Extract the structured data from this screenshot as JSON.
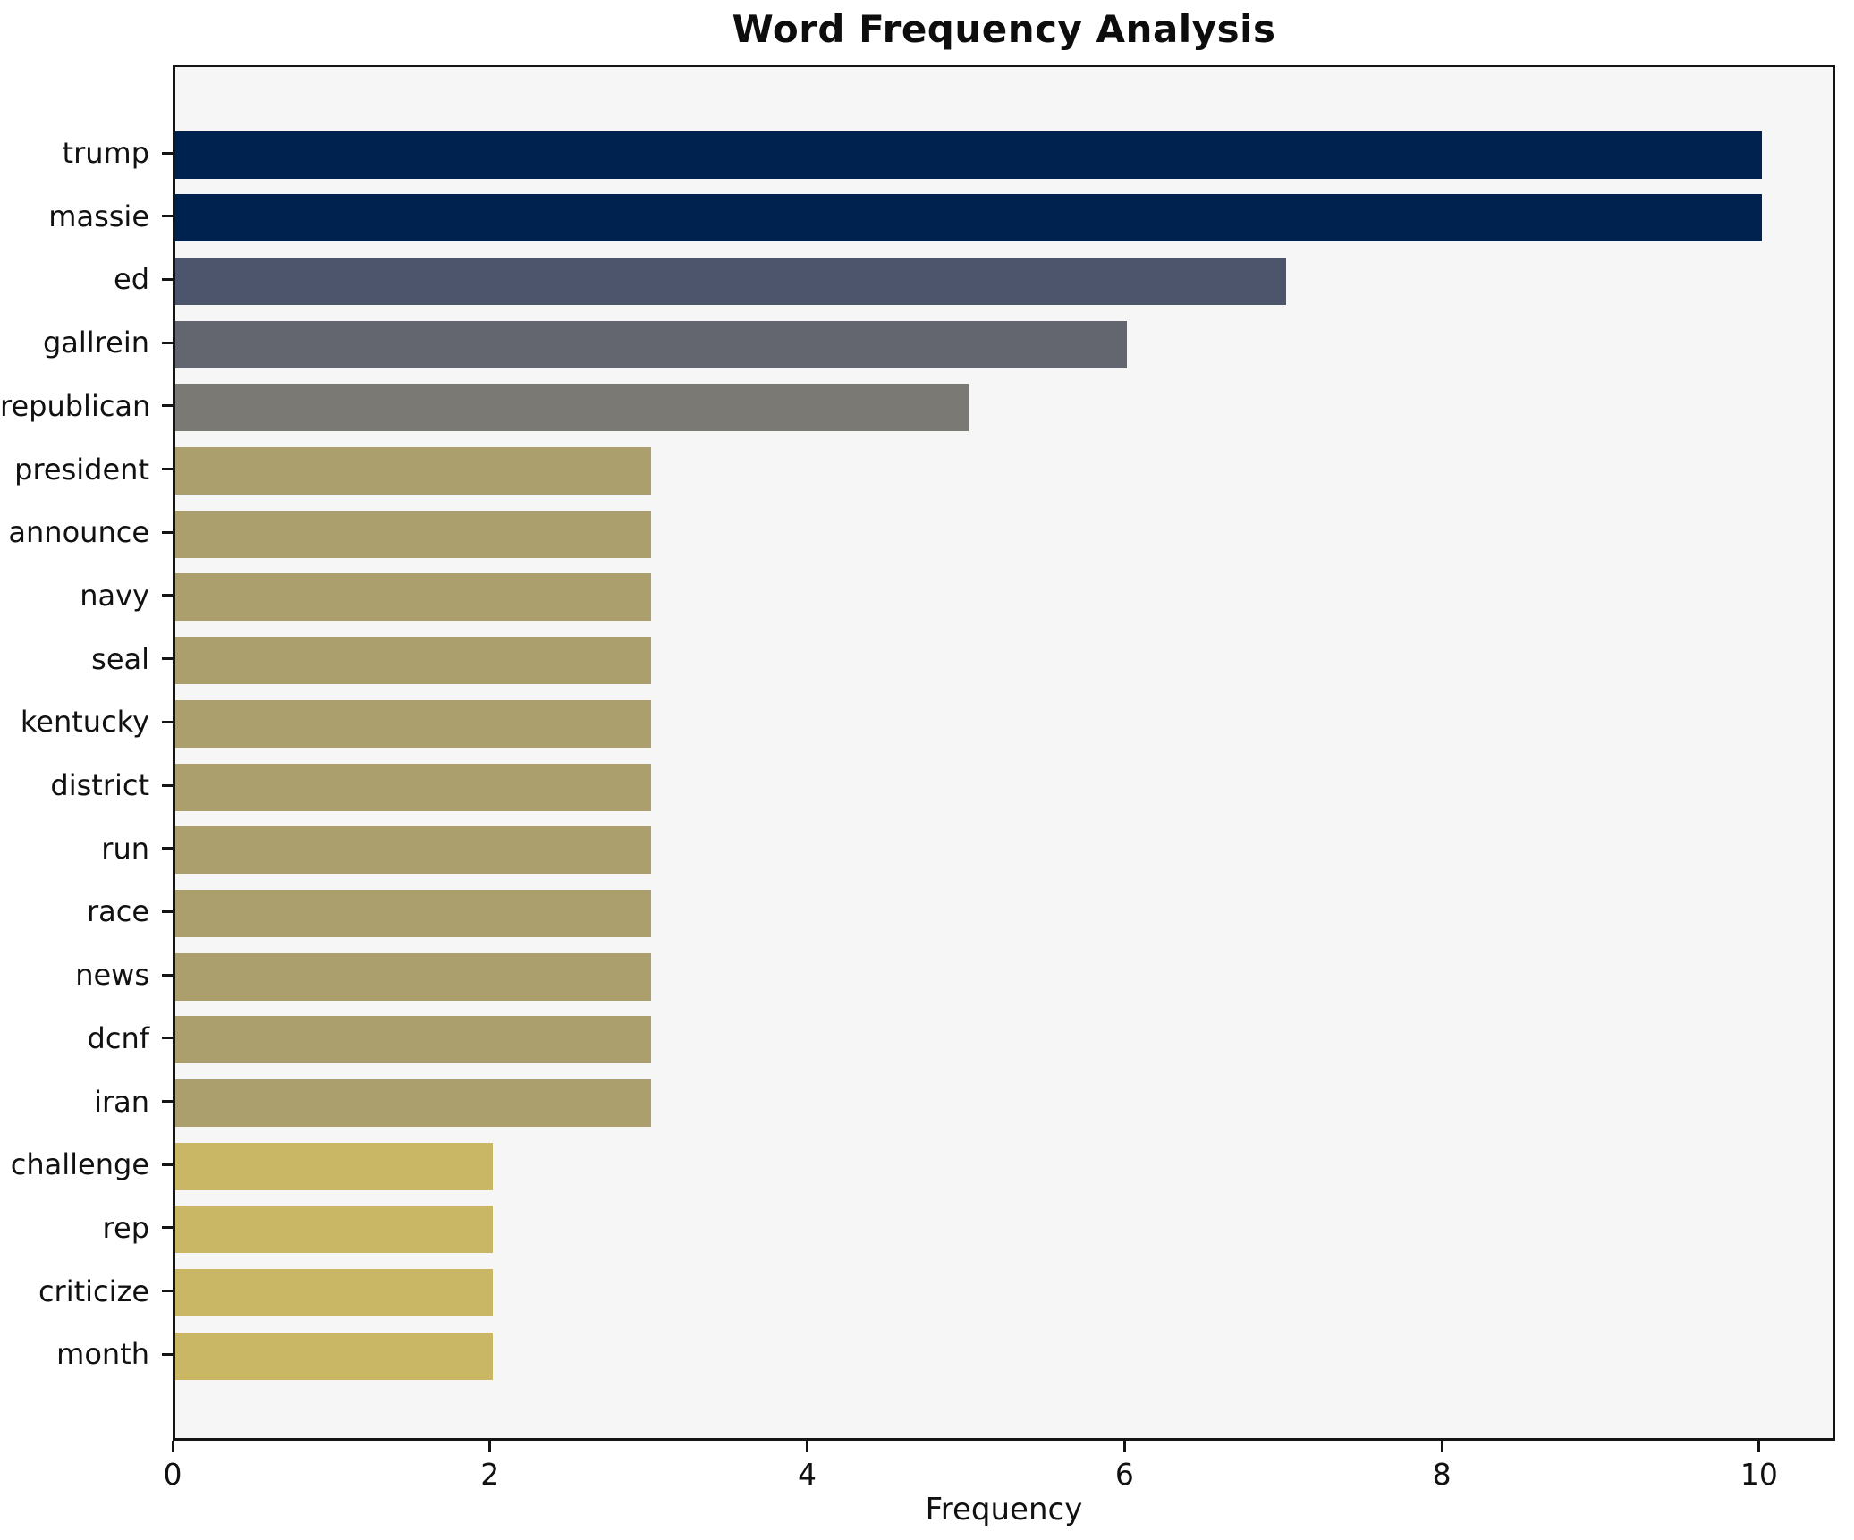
{
  "chart_data": {
    "type": "bar",
    "orientation": "horizontal",
    "title": "Word Frequency Analysis",
    "xlabel": "Frequency",
    "ylabel": "",
    "categories": [
      "trump",
      "massie",
      "ed",
      "gallrein",
      "republican",
      "president",
      "announce",
      "navy",
      "seal",
      "kentucky",
      "district",
      "run",
      "race",
      "news",
      "dcnf",
      "iran",
      "challenge",
      "rep",
      "criticize",
      "month"
    ],
    "values": [
      10,
      10,
      7,
      6,
      5,
      3,
      3,
      3,
      3,
      3,
      3,
      3,
      3,
      3,
      3,
      3,
      2,
      2,
      2,
      2
    ],
    "bar_colors": [
      "#00224e",
      "#00224e",
      "#4c556c",
      "#63666f",
      "#7b7973",
      "#aba06d",
      "#aba06d",
      "#aba06d",
      "#aba06d",
      "#aba06d",
      "#aba06d",
      "#aba06d",
      "#aba06d",
      "#aba06d",
      "#aba06d",
      "#aba06d",
      "#c9b765",
      "#c9b765",
      "#c9b765",
      "#c9b765"
    ],
    "xticks": [
      0,
      2,
      4,
      6,
      8,
      10
    ],
    "xlim": [
      0,
      10.48
    ],
    "grid": false,
    "legend": null,
    "colors": {
      "figure_bg": "#ffffff",
      "axes_bg": "#f6f6f7",
      "spine": "#141414",
      "text": "#111111",
      "accent_dark": "#00224e",
      "accent_light": "#c9b765"
    }
  }
}
